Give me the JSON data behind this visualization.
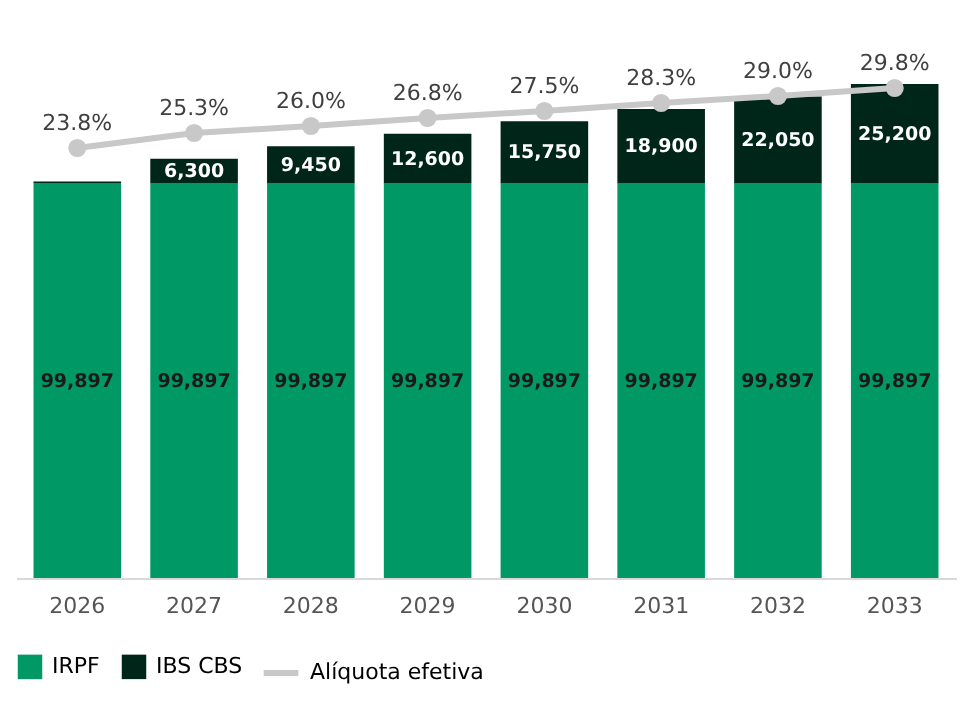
{
  "chart_data": {
    "type": "bar",
    "stacked": true,
    "categories": [
      "2026",
      "2027",
      "2028",
      "2029",
      "2030",
      "2031",
      "2032",
      "2033"
    ],
    "tick_labels": "x",
    "grid": false,
    "legend": "bottom",
    "series": [
      {
        "name": "IRPF",
        "color": "#009865",
        "values": [
          99897,
          99897,
          99897,
          99897,
          99897,
          99897,
          99897,
          99897
        ],
        "value_labels": [
          "99,897",
          "99,897",
          "99,897",
          "99,897",
          "99,897",
          "99,897",
          "99,897",
          "99,897"
        ]
      },
      {
        "name": "IBS CBS",
        "color": "#00261a",
        "values": [
          500,
          6300,
          9450,
          12600,
          15750,
          18900,
          22050,
          25200
        ],
        "value_labels": [
          null,
          "6,300",
          "9,450",
          "12,600",
          "15,750",
          "18,900",
          "22,050",
          "25,200"
        ]
      },
      {
        "name": "Alíquota efetiva",
        "type": "line",
        "axis": "y2",
        "color": "#c8c8c8",
        "marker": "circle",
        "line_style": "solid",
        "values": [
          23.8,
          25.3,
          26.0,
          26.8,
          27.5,
          28.3,
          29.0,
          29.8
        ],
        "value_labels": [
          "23.8%",
          "25.3%",
          "26.0%",
          "26.8%",
          "27.5%",
          "28.3%",
          "29.0%",
          "29.8%"
        ]
      }
    ]
  }
}
